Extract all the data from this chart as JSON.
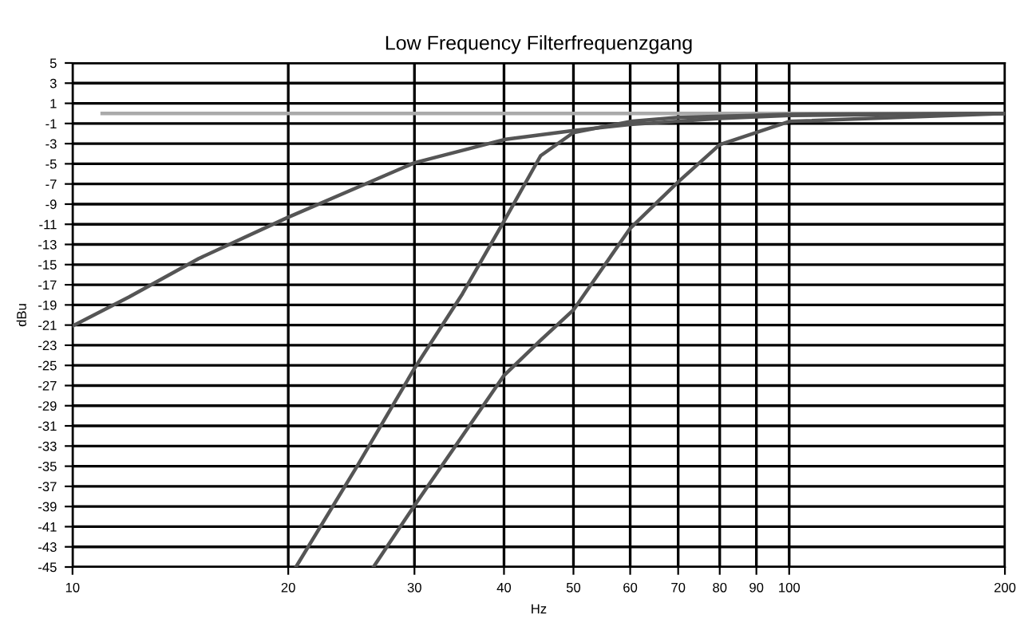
{
  "chart_data": {
    "type": "line",
    "title": "Low Frequency Filterfrequenzgang",
    "xlabel": "Hz",
    "ylabel": "dBu",
    "log": "x",
    "xlim": [
      10,
      200
    ],
    "xticks": [
      10,
      20,
      30,
      40,
      50,
      60,
      70,
      80,
      90,
      100,
      200
    ],
    "ylim": [
      -45,
      5
    ],
    "yticks": [
      5,
      3,
      1,
      -1,
      -3,
      -5,
      -7,
      -9,
      -11,
      -13,
      -15,
      -17,
      -19,
      -21,
      -23,
      -25,
      -27,
      -29,
      -31,
      -33,
      -35,
      -37,
      -39,
      -41,
      -43,
      -45
    ],
    "grid": true,
    "legend": false,
    "marker": "none",
    "line_style": "solid",
    "series": [
      {
        "color": "#aaaaaa",
        "x": [
          11,
          200
        ],
        "values": [
          0,
          0
        ]
      },
      {
        "color": "#555555",
        "x": [
          10,
          12,
          15,
          20,
          30,
          40,
          50,
          60,
          80,
          100,
          200
        ],
        "values": [
          -21.1,
          -18.2,
          -14.4,
          -10.3,
          -4.9,
          -2.6,
          -1.7,
          -1.1,
          -0.5,
          -0.2,
          0
        ]
      },
      {
        "color": "#555555",
        "x": [
          20.5,
          25,
          30,
          35,
          40,
          45,
          50,
          60,
          70,
          100,
          200
        ],
        "values": [
          -45,
          -34.9,
          -25.3,
          -17.9,
          -10.7,
          -4.2,
          -1.9,
          -0.8,
          -0.4,
          -0.1,
          0
        ]
      },
      {
        "color": "#555555",
        "x": [
          26.3,
          30,
          40,
          45,
          50,
          60,
          70,
          80,
          90,
          100,
          200
        ],
        "values": [
          -45,
          -38.9,
          -26.0,
          -22.5,
          -19.5,
          -11.4,
          -6.8,
          -3.1,
          -1.9,
          -0.8,
          0
        ]
      }
    ]
  }
}
